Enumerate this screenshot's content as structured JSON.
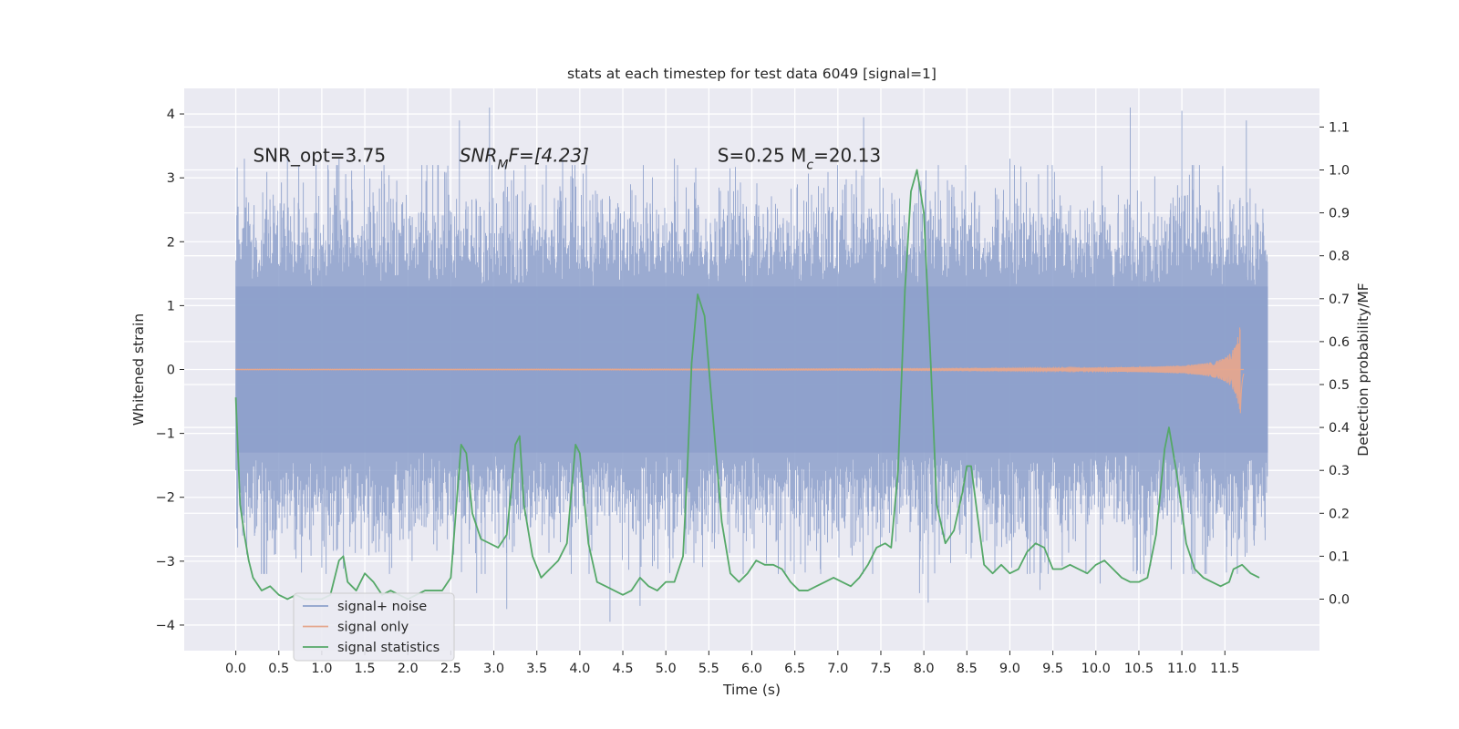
{
  "chart_data": {
    "type": "line",
    "title": "stats at each timestep for test data 6049 [signal=1]",
    "xlabel": "Time (s)",
    "ylabel": "Whitened strain",
    "y2label": "Detection probability/MF",
    "xlim": [
      -0.6,
      12.6
    ],
    "ylim": [
      -4.4,
      4.4
    ],
    "y2lim": [
      -0.12,
      1.19
    ],
    "x_ticks": [
      0.0,
      0.5,
      1.0,
      1.5,
      2.0,
      2.5,
      3.0,
      3.5,
      4.0,
      4.5,
      5.0,
      5.5,
      6.0,
      6.5,
      7.0,
      7.5,
      8.0,
      8.5,
      9.0,
      9.5,
      10.0,
      10.5,
      11.0,
      11.5
    ],
    "x_tick_labels": [
      "0.0",
      "0.5",
      "1.0",
      "1.5",
      "2.0",
      "2.5",
      "3.0",
      "3.5",
      "4.0",
      "4.5",
      "5.0",
      "5.5",
      "6.0",
      "6.5",
      "7.0",
      "7.5",
      "8.0",
      "8.5",
      "9.0",
      "9.5",
      "10.0",
      "10.5",
      "11.0",
      "11.5"
    ],
    "y_ticks": [
      -4,
      -3,
      -2,
      -1,
      0,
      1,
      2,
      3,
      4
    ],
    "y_tick_labels": [
      "−4",
      "−3",
      "−2",
      "−1",
      "0",
      "1",
      "2",
      "3",
      "4"
    ],
    "y2_ticks": [
      0.0,
      0.1,
      0.2,
      0.3,
      0.4,
      0.5,
      0.6,
      0.7,
      0.8,
      0.9,
      1.0,
      1.1
    ],
    "y2_tick_labels": [
      "0.0",
      "0.1",
      "0.2",
      "0.3",
      "0.4",
      "0.5",
      "0.6",
      "0.7",
      "0.8",
      "0.9",
      "1.0",
      "1.1"
    ],
    "grid": true,
    "legend_position": "bottom-left",
    "annotations": [
      {
        "text": "SNR_opt=3.75",
        "x": 0.2,
        "y": 3.25
      },
      {
        "text": "SNR",
        "sub": "M",
        "rest": "F=[4.23]",
        "x": 2.6,
        "y": 3.25
      },
      {
        "text": "S=0.25   M",
        "sub": "c",
        "rest": "=20.13",
        "x": 5.6,
        "y": 3.25
      }
    ],
    "series": [
      {
        "name": "signal+ noise",
        "color": "#8da0cb",
        "kind": "dense-noise",
        "x_range": [
          0.0,
          12.0
        ],
        "typical_amplitude": 1.3,
        "peak_values": [
          [
            0.1,
            3.3
          ],
          [
            0.6,
            3.3
          ],
          [
            1.2,
            3.3
          ],
          [
            2.6,
            3.9
          ],
          [
            2.95,
            4.1
          ],
          [
            3.8,
            3.3
          ],
          [
            5.1,
            3.3
          ],
          [
            7.3,
            3.95
          ],
          [
            9.0,
            3.3
          ],
          [
            10.4,
            4.1
          ],
          [
            11.0,
            4.05
          ],
          [
            11.75,
            3.9
          ],
          [
            0.45,
            -2.9
          ],
          [
            1.0,
            -3.1
          ],
          [
            2.05,
            -3.0
          ],
          [
            2.8,
            -3.5
          ],
          [
            3.15,
            -3.75
          ],
          [
            4.35,
            -3.95
          ],
          [
            4.7,
            -3.7
          ],
          [
            7.95,
            -3.5
          ],
          [
            8.05,
            -3.65
          ],
          [
            9.35,
            -3.45
          ],
          [
            10.05,
            -3.35
          ],
          [
            11.15,
            -3.2
          ]
        ]
      },
      {
        "name": "signal only",
        "color": "#e5a78e",
        "kind": "chirp",
        "x_range": [
          0.0,
          11.72
        ],
        "peak_amplitude": 0.88,
        "peak_time": 11.68
      },
      {
        "name": "signal statistics",
        "color": "#55a868",
        "axis": "right",
        "x": [
          0.0,
          0.05,
          0.1,
          0.15,
          0.2,
          0.3,
          0.4,
          0.5,
          0.6,
          0.7,
          0.8,
          0.9,
          1.0,
          1.1,
          1.2,
          1.25,
          1.3,
          1.4,
          1.5,
          1.6,
          1.7,
          1.8,
          1.9,
          2.0,
          2.1,
          2.2,
          2.3,
          2.4,
          2.5,
          2.55,
          2.62,
          2.68,
          2.75,
          2.85,
          2.95,
          3.05,
          3.15,
          3.2,
          3.25,
          3.3,
          3.35,
          3.45,
          3.55,
          3.65,
          3.75,
          3.85,
          3.95,
          4.0,
          4.1,
          4.2,
          4.3,
          4.4,
          4.5,
          4.6,
          4.7,
          4.8,
          4.9,
          5.0,
          5.1,
          5.2,
          5.25,
          5.3,
          5.37,
          5.45,
          5.55,
          5.65,
          5.75,
          5.85,
          5.95,
          6.05,
          6.15,
          6.25,
          6.35,
          6.45,
          6.55,
          6.65,
          6.75,
          6.85,
          6.95,
          7.05,
          7.15,
          7.25,
          7.35,
          7.45,
          7.55,
          7.62,
          7.7,
          7.78,
          7.85,
          7.92,
          8.0,
          8.08,
          8.15,
          8.25,
          8.35,
          8.45,
          8.5,
          8.55,
          8.62,
          8.7,
          8.8,
          8.9,
          9.0,
          9.1,
          9.2,
          9.3,
          9.4,
          9.5,
          9.6,
          9.7,
          9.8,
          9.9,
          10.0,
          10.1,
          10.2,
          10.3,
          10.4,
          10.5,
          10.6,
          10.7,
          10.8,
          10.85,
          10.95,
          11.05,
          11.15,
          11.25,
          11.35,
          11.45,
          11.55,
          11.6,
          11.7,
          11.8,
          11.9
        ],
        "values": [
          0.47,
          0.22,
          0.15,
          0.09,
          0.05,
          0.02,
          0.03,
          0.01,
          0.0,
          0.01,
          0.0,
          0.0,
          0.0,
          0.01,
          0.09,
          0.1,
          0.04,
          0.02,
          0.06,
          0.04,
          0.01,
          0.02,
          0.01,
          0.0,
          0.01,
          0.02,
          0.02,
          0.02,
          0.05,
          0.18,
          0.36,
          0.34,
          0.2,
          0.14,
          0.13,
          0.12,
          0.15,
          0.25,
          0.36,
          0.38,
          0.22,
          0.1,
          0.05,
          0.07,
          0.09,
          0.13,
          0.36,
          0.34,
          0.13,
          0.04,
          0.03,
          0.02,
          0.01,
          0.02,
          0.05,
          0.03,
          0.02,
          0.04,
          0.04,
          0.1,
          0.3,
          0.55,
          0.71,
          0.66,
          0.42,
          0.18,
          0.06,
          0.04,
          0.06,
          0.09,
          0.08,
          0.08,
          0.07,
          0.04,
          0.02,
          0.02,
          0.03,
          0.04,
          0.05,
          0.04,
          0.03,
          0.05,
          0.08,
          0.12,
          0.13,
          0.12,
          0.3,
          0.72,
          0.95,
          1.0,
          0.9,
          0.55,
          0.22,
          0.13,
          0.16,
          0.25,
          0.31,
          0.31,
          0.2,
          0.08,
          0.06,
          0.08,
          0.06,
          0.07,
          0.11,
          0.13,
          0.12,
          0.07,
          0.07,
          0.08,
          0.07,
          0.06,
          0.08,
          0.09,
          0.07,
          0.05,
          0.04,
          0.04,
          0.05,
          0.15,
          0.35,
          0.4,
          0.28,
          0.13,
          0.07,
          0.05,
          0.04,
          0.03,
          0.04,
          0.07,
          0.08,
          0.06,
          0.05
        ]
      }
    ]
  }
}
